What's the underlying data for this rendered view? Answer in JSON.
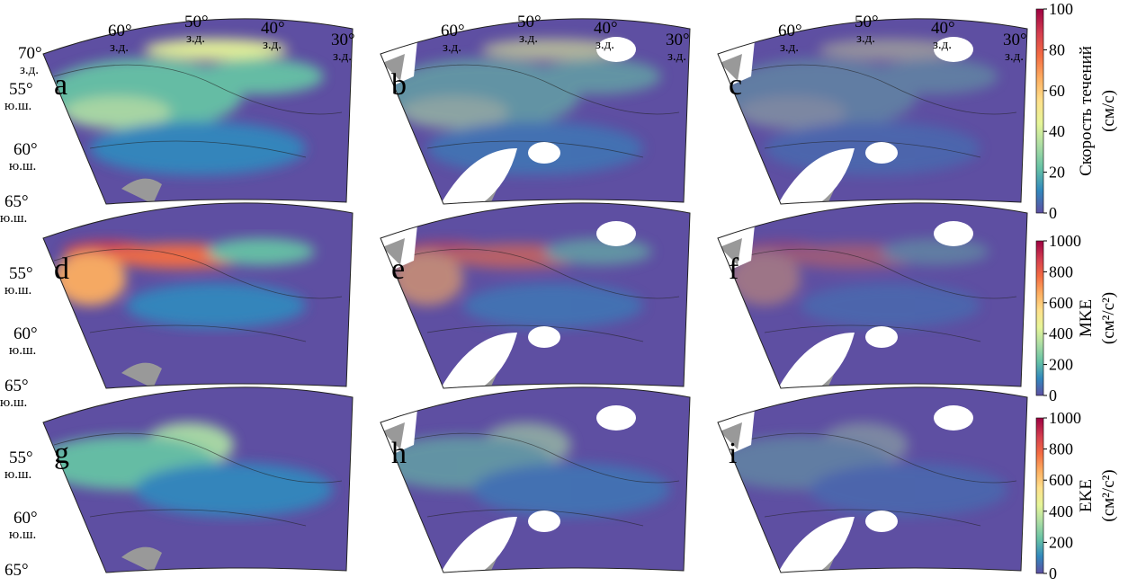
{
  "panels": [
    {
      "letter": "a",
      "lon_labels": [
        {
          "deg": "70°",
          "hemi": "з.д."
        },
        {
          "deg": "60°",
          "hemi": "з.д."
        },
        {
          "deg": "50°",
          "hemi": "з.д."
        },
        {
          "deg": "40°",
          "hemi": "з.д."
        },
        {
          "deg": "30°",
          "hemi": "з.д."
        }
      ],
      "lat_labels": [
        {
          "deg": "55°",
          "hemi": "ю.ш."
        },
        {
          "deg": "60°",
          "hemi": "ю.ш."
        },
        {
          "deg": "65°",
          "hemi": "ю.ш."
        }
      ]
    },
    {
      "letter": "b",
      "lon_labels": [
        {
          "deg": "60°",
          "hemi": "з.д."
        },
        {
          "deg": "50°",
          "hemi": "з.д."
        },
        {
          "deg": "40°",
          "hemi": "з.д."
        },
        {
          "deg": "30°",
          "hemi": "з.д."
        }
      ]
    },
    {
      "letter": "c",
      "lon_labels": [
        {
          "deg": "60°",
          "hemi": "з.д."
        },
        {
          "deg": "50°",
          "hemi": "з.д."
        },
        {
          "deg": "40°",
          "hemi": "з.д."
        },
        {
          "deg": "30°",
          "hemi": "з.д."
        }
      ]
    },
    {
      "letter": "d",
      "lat_labels": [
        {
          "deg": "55°",
          "hemi": "ю.ш."
        },
        {
          "deg": "60°",
          "hemi": "ю.ш."
        },
        {
          "deg": "65°",
          "hemi": "ю.ш."
        }
      ]
    },
    {
      "letter": "e"
    },
    {
      "letter": "f"
    },
    {
      "letter": "g",
      "lat_labels": [
        {
          "deg": "55°",
          "hemi": "ю.ш."
        },
        {
          "deg": "60°",
          "hemi": "ю.ш."
        },
        {
          "deg": "65°",
          "hemi": "ю.ш."
        }
      ]
    },
    {
      "letter": "h"
    },
    {
      "letter": "i"
    }
  ],
  "colorbars": [
    {
      "label": "Скорость течений",
      "unit": "(см/с)",
      "lim": [
        0,
        100
      ],
      "ticks": [
        0,
        20,
        40,
        60,
        80,
        100
      ]
    },
    {
      "label": "MKE",
      "unit": "(см²/с²)",
      "lim": [
        0,
        1000
      ],
      "ticks": [
        0,
        200,
        400,
        600,
        800,
        1000
      ]
    },
    {
      "label": "EKE",
      "unit": "(см²/с²)",
      "lim": [
        0,
        1000
      ],
      "ticks": [
        0,
        200,
        400,
        600,
        800,
        1000
      ]
    }
  ]
}
